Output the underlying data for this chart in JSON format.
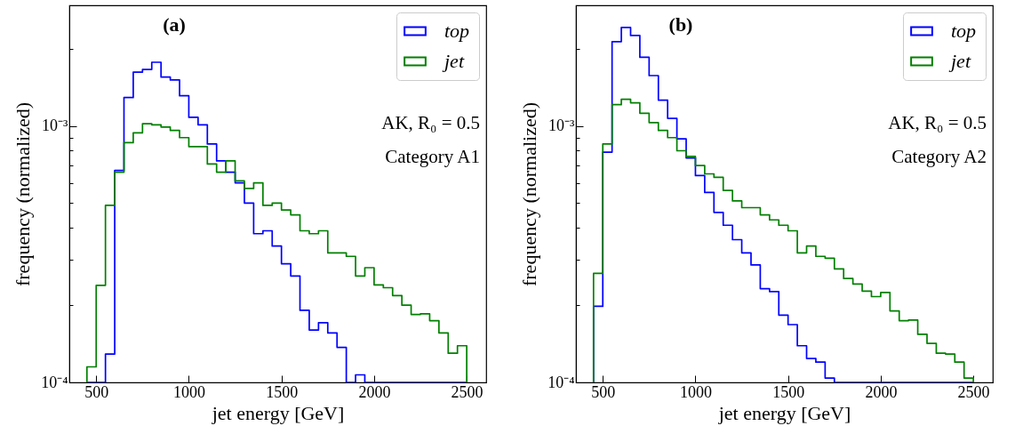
{
  "chart_data": [
    {
      "type": "histogram",
      "title": "(a)",
      "xlabel": "jet energy [GeV]",
      "ylabel": "frequency (normalized)",
      "annotations": [
        "AK, R₀ = 0.5",
        "Category A1"
      ],
      "log": true,
      "grid": false,
      "legend": "top right",
      "xlim": [
        355,
        2605
      ],
      "xticks": [
        500,
        1000,
        1500,
        2000,
        2500
      ],
      "ylim": [
        0.0001,
        0.00295
      ],
      "yticks": [
        {
          "value": 0.0001,
          "label": "10⁻⁴"
        },
        {
          "value": 0.0002,
          "label": null
        },
        {
          "value": 0.0003,
          "label": null
        },
        {
          "value": 0.0004,
          "label": null
        },
        {
          "value": 0.0005,
          "label": null
        },
        {
          "value": 0.0006,
          "label": null
        },
        {
          "value": 0.0007,
          "label": null
        },
        {
          "value": 0.0008,
          "label": null
        },
        {
          "value": 0.0009,
          "label": null
        },
        {
          "value": 0.001,
          "label": "10⁻³"
        },
        {
          "value": 0.002,
          "label": null
        }
      ],
      "bins": [
        450,
        500,
        550,
        600,
        650,
        700,
        750,
        800,
        850,
        900,
        950,
        1000,
        1050,
        1100,
        1150,
        1200,
        1250,
        1300,
        1350,
        1400,
        1450,
        1500,
        1550,
        1600,
        1650,
        1700,
        1750,
        1800,
        1850,
        1900,
        1950,
        2000,
        2050,
        2100,
        2150,
        2200,
        2250,
        2300,
        2350,
        2400,
        2450,
        2500
      ],
      "series": [
        {
          "name": "top",
          "color": "#0000ff",
          "values": [
            null,
            null,
            0.000129,
            0.00067,
            0.00129,
            0.00162,
            0.00166,
            0.00177,
            0.00155,
            0.00151,
            0.00131,
            0.00108,
            0.00101,
            0.00085,
            0.00073,
            0.00066,
            0.0006,
            0.0005,
            0.00038,
            0.00039,
            0.00034,
            0.00029,
            0.00026,
            0.000191,
            0.00016,
            0.000171,
            0.000156,
            0.000137,
            null,
            0.000107,
            null,
            null,
            null,
            null,
            null,
            null,
            null,
            null,
            null,
            null,
            null
          ]
        },
        {
          "name": "jet",
          "color": "#008000",
          "values": [
            0.000115,
            0.000239,
            0.00049,
            0.00066,
            0.00086,
            0.00094,
            0.00102,
            0.00101,
            0.00099,
            0.00096,
            0.0009,
            0.00083,
            0.00083,
            0.00071,
            0.00066,
            0.00073,
            0.00061,
            0.00057,
            0.0006,
            0.00049,
            0.0005,
            0.00047,
            0.00045,
            0.00039,
            0.00038,
            0.00039,
            0.00032,
            0.00032,
            0.00031,
            0.00026,
            0.00028,
            0.00024,
            0.000234,
            0.000218,
            0.0002,
            0.000184,
            0.000185,
            0.000174,
            0.000156,
            0.00013,
            0.000139
          ]
        }
      ]
    },
    {
      "type": "histogram",
      "title": "(b)",
      "xlabel": "jet energy [GeV]",
      "ylabel": "frequency (normalized)",
      "annotations": [
        "AK, R₀ = 0.5",
        "Category A2"
      ],
      "log": true,
      "grid": false,
      "legend": "top right",
      "xlim": [
        355,
        2605
      ],
      "xticks": [
        500,
        1000,
        1500,
        2000,
        2500
      ],
      "ylim": [
        0.0001,
        0.00295
      ],
      "yticks": [
        {
          "value": 0.0001,
          "label": "10⁻⁴"
        },
        {
          "value": 0.0002,
          "label": null
        },
        {
          "value": 0.0003,
          "label": null
        },
        {
          "value": 0.0004,
          "label": null
        },
        {
          "value": 0.0005,
          "label": null
        },
        {
          "value": 0.0006,
          "label": null
        },
        {
          "value": 0.0007,
          "label": null
        },
        {
          "value": 0.0008,
          "label": null
        },
        {
          "value": 0.0009,
          "label": null
        },
        {
          "value": 0.001,
          "label": "10⁻³"
        },
        {
          "value": 0.002,
          "label": null
        }
      ],
      "bins": [
        450,
        500,
        550,
        600,
        650,
        700,
        750,
        800,
        850,
        900,
        950,
        1000,
        1050,
        1100,
        1150,
        1200,
        1250,
        1300,
        1350,
        1400,
        1450,
        1500,
        1550,
        1600,
        1650,
        1700,
        1750,
        1800,
        1850,
        1900,
        1950,
        2000,
        2050,
        2100,
        2150,
        2200,
        2250,
        2300,
        2350,
        2400,
        2450,
        2500
      ],
      "series": [
        {
          "name": "top",
          "color": "#0000ff",
          "values": [
            0.000198,
            0.00079,
            0.00213,
            0.00242,
            0.00225,
            0.00185,
            0.00157,
            0.00126,
            0.00107,
            0.00089,
            0.00075,
            0.00064,
            0.00055,
            0.00046,
            0.00041,
            0.00036,
            0.00032,
            0.000287,
            0.000232,
            0.000226,
            0.000183,
            0.000168,
            0.000139,
            0.000124,
            0.00012,
            0.000104,
            null,
            null,
            null,
            null,
            null,
            null,
            null,
            null,
            null,
            null,
            null,
            null,
            null,
            null,
            null
          ]
        },
        {
          "name": "jet",
          "color": "#008000",
          "values": [
            0.000266,
            0.00085,
            0.00121,
            0.00127,
            0.00123,
            0.00112,
            0.00103,
            0.00096,
            0.0009,
            0.0008,
            0.00076,
            0.0007,
            0.00065,
            0.00063,
            0.00056,
            0.00051,
            0.00048,
            0.00048,
            0.00045,
            0.00043,
            0.00041,
            0.00039,
            0.00032,
            0.00034,
            0.00031,
            0.000305,
            0.000277,
            0.000254,
            0.000242,
            0.000227,
            0.000216,
            0.000224,
            0.00019,
            0.000174,
            0.000175,
            0.000154,
            0.000142,
            0.00013,
            0.000129,
            0.00012,
            0.000104
          ]
        }
      ]
    }
  ]
}
